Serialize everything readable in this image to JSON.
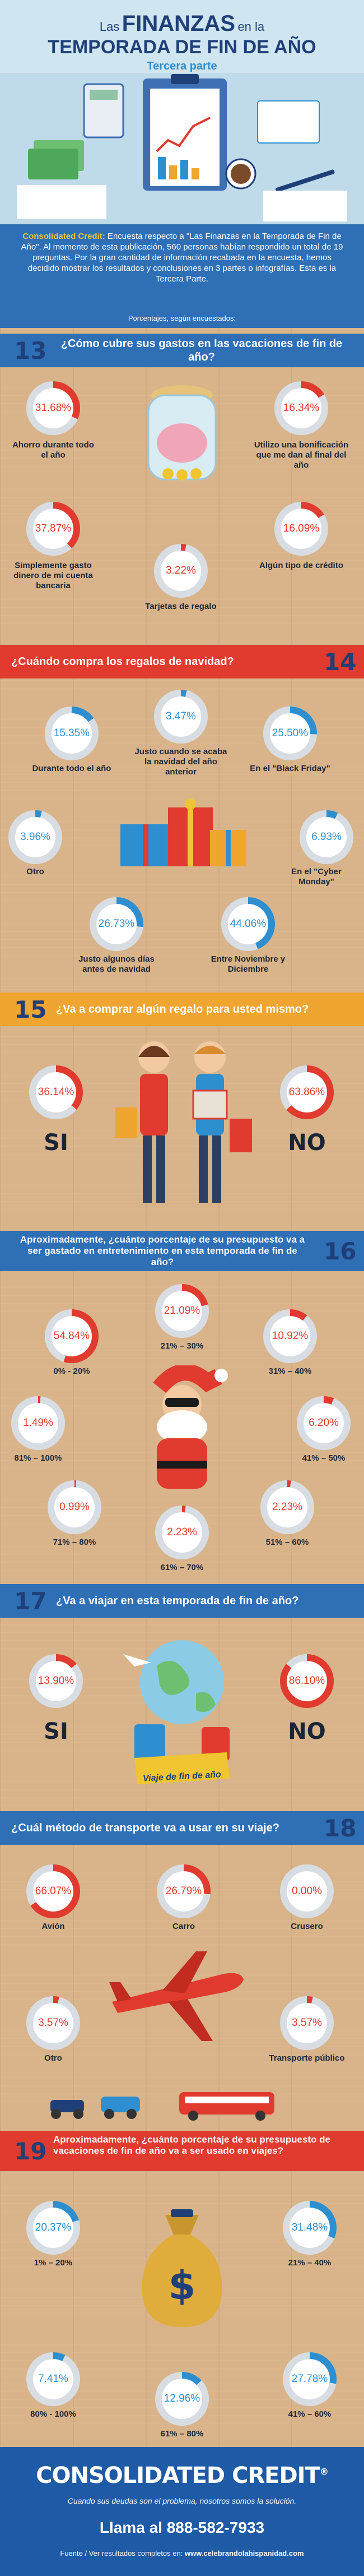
{
  "colors": {
    "red": "#e03b2e",
    "blue": "#2e8fd0",
    "orange": "#f1a531",
    "navy": "#1f3f78",
    "wood": "#d9b48a"
  },
  "header": {
    "title_pre": "Las",
    "title_main": "FINANZAS",
    "title_mid": "en la",
    "title_line2": "TEMPORADA DE FIN DE AÑO",
    "subtitle": "Tercera parte"
  },
  "intro": {
    "lead": "Consolidated Credit:",
    "text": " Encuesta respecto a \"Las Finanzas en la Temporada de Fin de Año\". Al momento de esta publicación, 560 personas habían respondido un total de 19 preguntas. Por la gran cantidad de información recabada en la encuesta, hemos decidido mostrar los resultados y conclusiones en 3 partes o infografías. Esta es la Tercera Parte.",
    "note": "Porcentajes, según encuestados:"
  },
  "q13": {
    "num": "13",
    "question": "¿Cómo cubre sus gastos en las vacaciones de fin de año?",
    "items": [
      {
        "pct": "31.68%",
        "value": 31.68,
        "label": "Ahorro durante todo el año"
      },
      {
        "pct": "16.34%",
        "value": 16.34,
        "label": "Utilizo una bonificación que me dan al final del año"
      },
      {
        "pct": "37.87%",
        "value": 37.87,
        "label": "Simplemente gasto dinero de mi cuenta bancaria"
      },
      {
        "pct": "3.22%",
        "value": 3.22,
        "label": "Tarjetas de regalo"
      },
      {
        "pct": "16.09%",
        "value": 16.09,
        "label": "Algún tipo de crédito"
      }
    ]
  },
  "q14": {
    "num": "14",
    "question": "¿Cuándo compra los regalos de navidad?",
    "items": [
      {
        "pct": "3.47%",
        "value": 3.47,
        "label": "Justo cuando se acaba la navidad del año anterior"
      },
      {
        "pct": "15.35%",
        "value": 15.35,
        "label": "Durante todo el año"
      },
      {
        "pct": "25.50%",
        "value": 25.5,
        "label": "En el \"Black Friday\""
      },
      {
        "pct": "3.96%",
        "value": 3.96,
        "label": "Otro"
      },
      {
        "pct": "6.93%",
        "value": 6.93,
        "label": "En el \"Cyber Monday\""
      },
      {
        "pct": "26.73%",
        "value": 26.73,
        "label": "Justo algunos días antes de navidad"
      },
      {
        "pct": "44.06%",
        "value": 44.06,
        "label": "Entre Noviembre y Diciembre"
      }
    ]
  },
  "q15": {
    "num": "15",
    "question": "¿Va a comprar algún regalo para usted mismo?",
    "items": [
      {
        "pct": "36.14%",
        "value": 36.14,
        "label": "SI"
      },
      {
        "pct": "63.86%",
        "value": 63.86,
        "label": "NO"
      }
    ]
  },
  "q16": {
    "num": "16",
    "question": "Aproximadamente, ¿cuánto porcentaje de su presupuesto va a ser gastado en entretenimiento en esta temporada de fin de año?",
    "items": [
      {
        "pct": "21.09%",
        "value": 21.09,
        "label": "21% – 30%"
      },
      {
        "pct": "54.84%",
        "value": 54.84,
        "label": "0% - 20%"
      },
      {
        "pct": "10.92%",
        "value": 10.92,
        "label": "31% – 40%"
      },
      {
        "pct": "1.49%",
        "value": 1.49,
        "label": "81% – 100%"
      },
      {
        "pct": "6.20%",
        "value": 6.2,
        "label": "41% – 50%"
      },
      {
        "pct": "0.99%",
        "value": 0.99,
        "label": "71% – 80%"
      },
      {
        "pct": "2.23%",
        "value": 2.23,
        "label": "51% – 60%"
      },
      {
        "pct": "2.23%",
        "value": 2.23,
        "label": "61% – 70%"
      }
    ]
  },
  "q17": {
    "num": "17",
    "question": "¿Va a viajar en esta temporada de fin de año?",
    "sign": "Viaje de fin de año",
    "items": [
      {
        "pct": "13.90%",
        "value": 13.9,
        "label": "SI"
      },
      {
        "pct": "86.10%",
        "value": 86.1,
        "label": "NO"
      }
    ]
  },
  "q18": {
    "num": "18",
    "question": "¿Cuál método de transporte va a usar en su viaje?",
    "items": [
      {
        "pct": "66.07%",
        "value": 66.07,
        "label": "Avión"
      },
      {
        "pct": "26.79%",
        "value": 26.79,
        "label": "Carro"
      },
      {
        "pct": "0.00%",
        "value": 0,
        "label": "Crusero"
      },
      {
        "pct": "3.57%",
        "value": 3.57,
        "label": "Otro"
      },
      {
        "pct": "3.57%",
        "value": 3.57,
        "label": "Transporte público"
      }
    ]
  },
  "q19": {
    "num": "19",
    "question": "Aproximadamente, ¿cuánto porcentaje de su presupuesto de vacaciones de fin de año va a ser usado en viajes?",
    "items": [
      {
        "pct": "20.37%",
        "value": 20.37,
        "label": "1% – 20%"
      },
      {
        "pct": "31.48%",
        "value": 31.48,
        "label": "21% – 40%"
      },
      {
        "pct": "7.41%",
        "value": 7.41,
        "label": "80% - 100%"
      },
      {
        "pct": "12.96%",
        "value": 12.96,
        "label": "61% – 80%"
      },
      {
        "pct": "27.78%",
        "value": 27.78,
        "label": "41% – 60%"
      }
    ]
  },
  "footer": {
    "brand": "CONSOLIDATED CREDIT",
    "reg": "®",
    "tagline": "Cuando sus deudas son el problema, nosotros somos la solución.",
    "phone": "Llama al 888-582-7933",
    "source_pre": "Fuente / Ver resultados completos en: ",
    "source_url": "www.celebrandolahispanidad.com"
  }
}
